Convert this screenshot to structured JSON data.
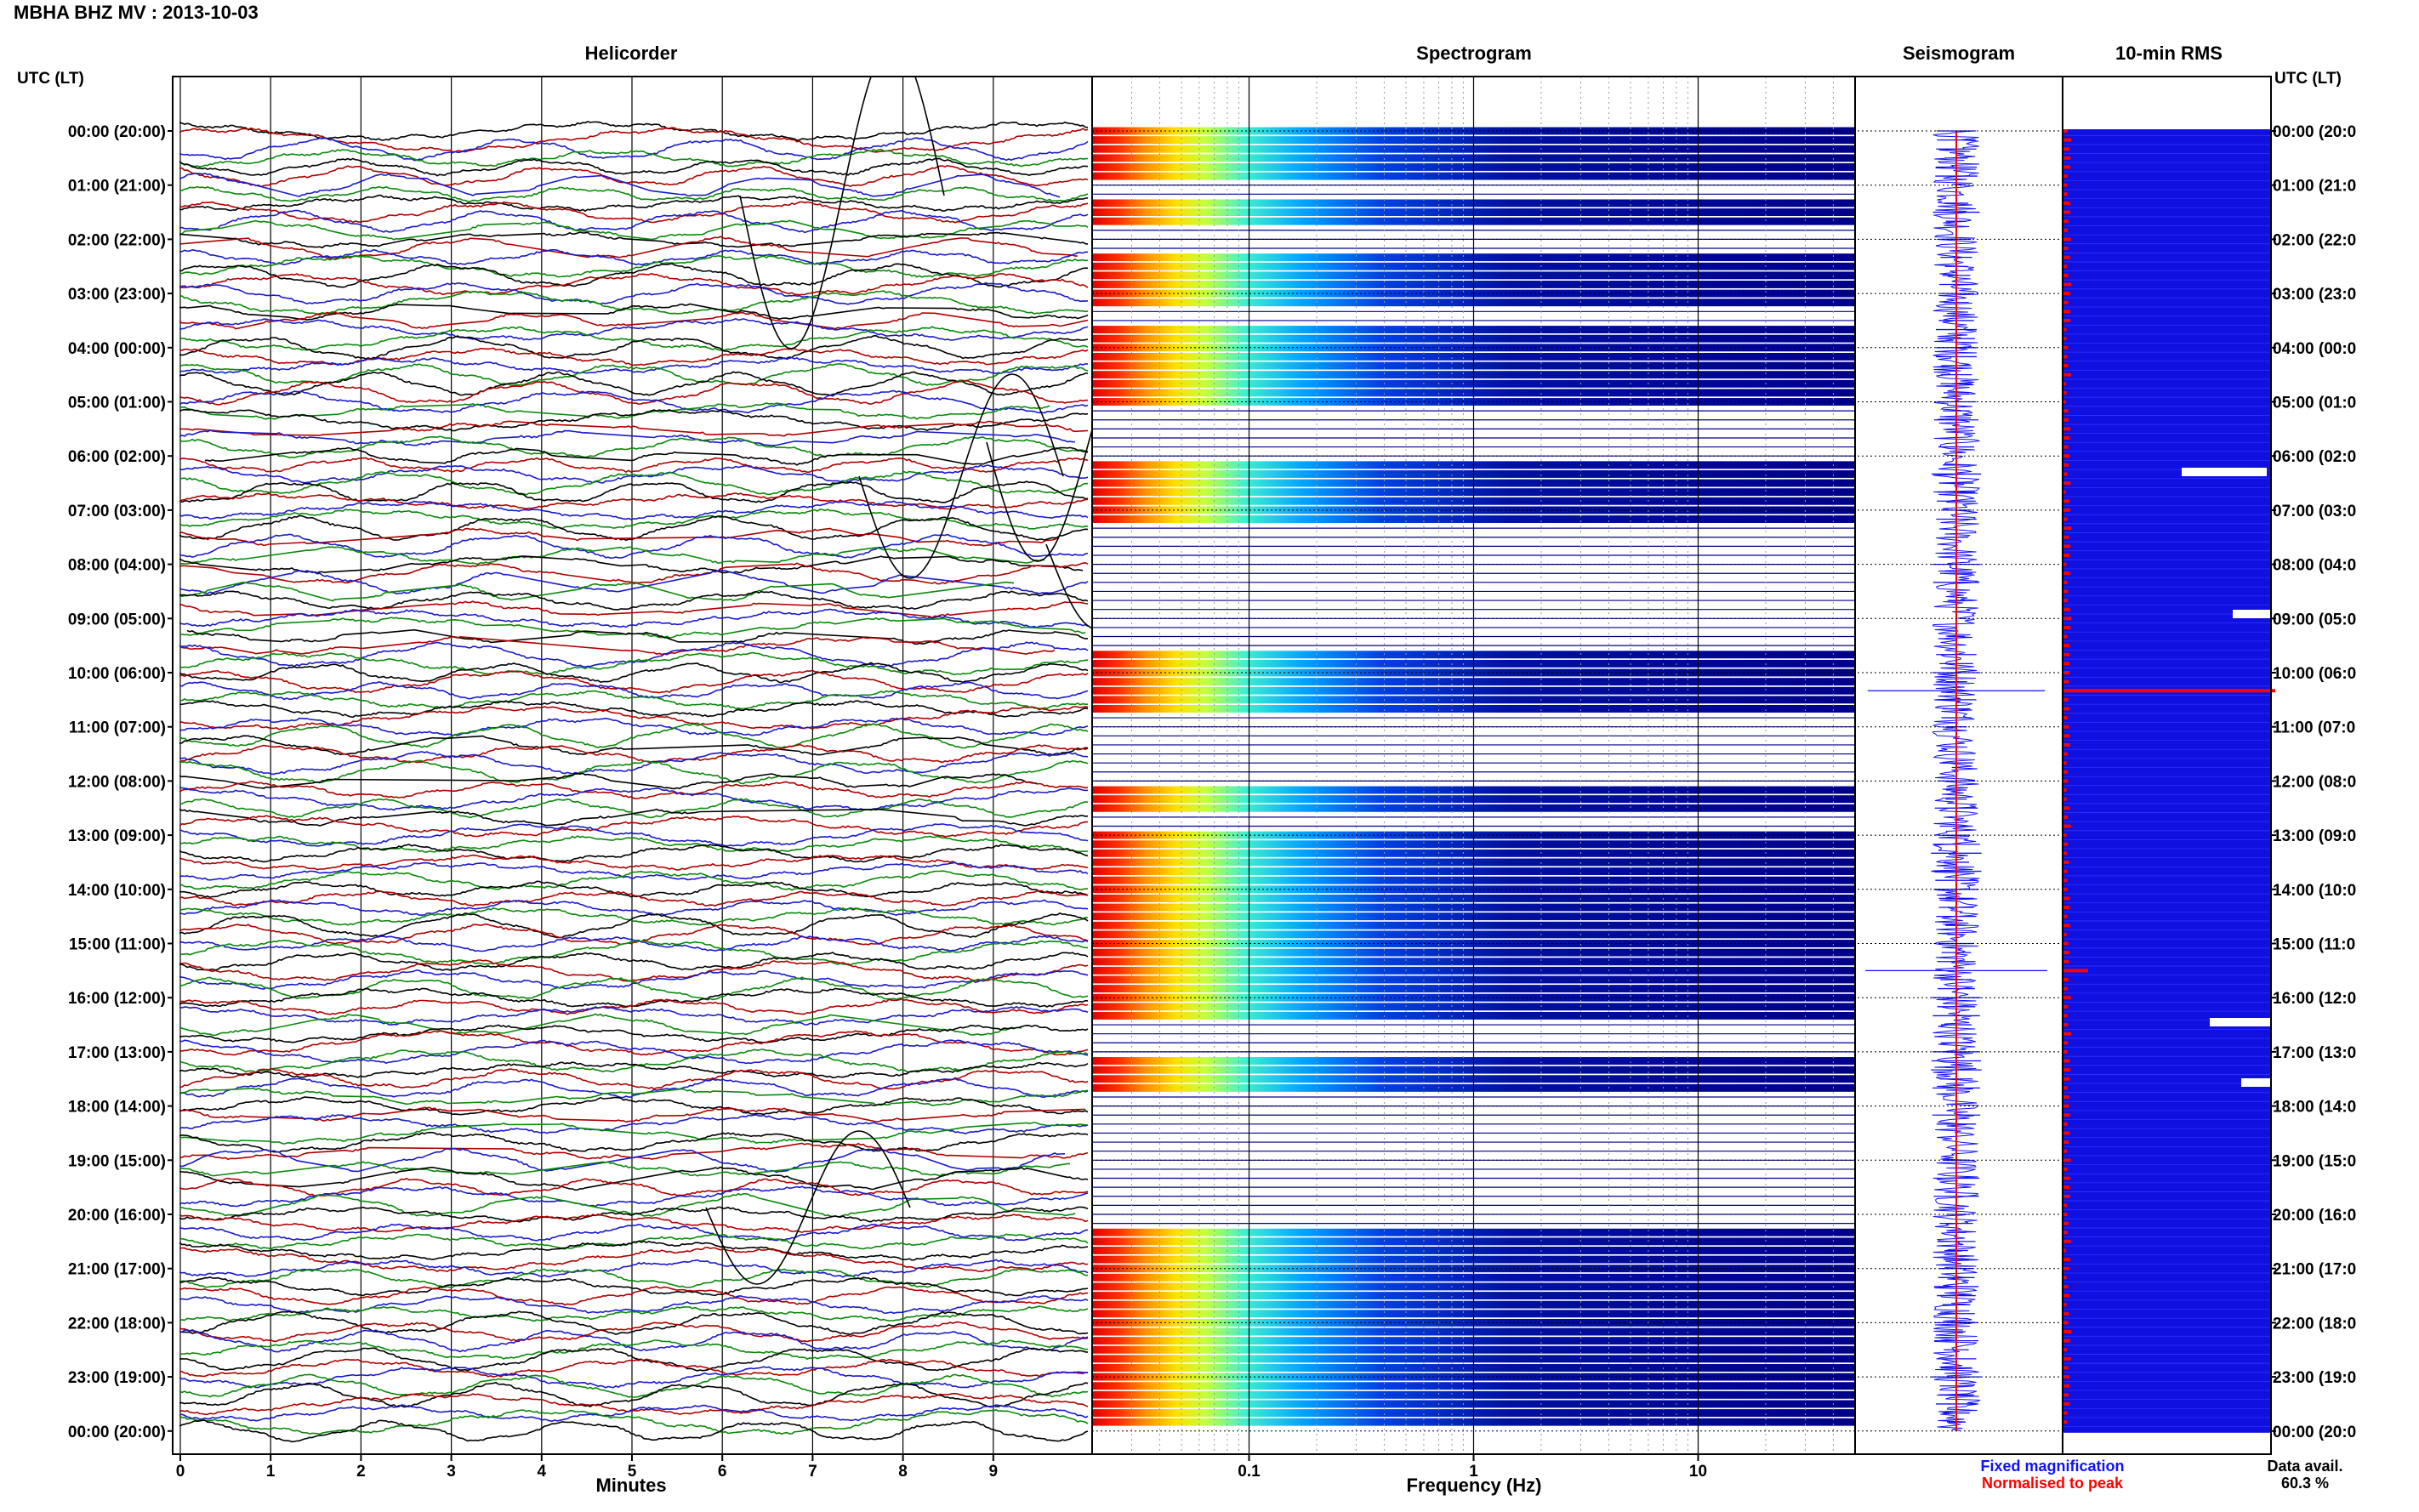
{
  "header": {
    "title": "MBHA BHZ MV : 2013-10-03",
    "utc_label_left": "UTC (LT)",
    "utc_label_right": "UTC (LT)"
  },
  "panels": {
    "helicorder": "Helicorder",
    "spectrogram": "Spectrogram",
    "seismogram": "Seismogram",
    "rms": "10-min RMS"
  },
  "footer": {
    "minutes_label": "Minutes",
    "frequency_label": "Frequency (Hz)",
    "fixed_magnification": "Fixed magnification",
    "normalised_to_peak": "Normalised to peak",
    "data_avail_label": "Data avail.",
    "data_avail_value": "60.3 %"
  },
  "colors": {
    "trace_black": "#000000",
    "trace_red": "#b00000",
    "trace_blue": "#1a1acc",
    "trace_green": "#0a8a0a",
    "rms_blue": "#1010e0",
    "peak_red": "#ff0000",
    "legend_blue": "#1010ff",
    "legend_red": "#ff0000"
  },
  "chart_data": [
    {
      "type": "line",
      "name": "Helicorder",
      "xlabel": "Minutes",
      "x_ticks": [
        "0",
        "1",
        "2",
        "3",
        "4",
        "5",
        "6",
        "7",
        "8",
        "9"
      ],
      "xlim": [
        0,
        10
      ],
      "y_ticks": [
        "00:00 (20:00)",
        "01:00 (21:00)",
        "02:00 (22:00)",
        "03:00 (23:00)",
        "04:00 (00:00)",
        "05:00 (01:00)",
        "06:00 (02:00)",
        "07:00 (03:00)",
        "08:00 (04:00)",
        "09:00 (05:00)",
        "10:00 (06:00)",
        "11:00 (07:00)",
        "12:00 (08:00)",
        "13:00 (09:00)",
        "14:00 (10:00)",
        "15:00 (11:00)",
        "16:00 (12:00)",
        "17:00 (13:00)",
        "18:00 (14:00)",
        "19:00 (15:00)",
        "20:00 (16:00)",
        "21:00 (17:00)",
        "22:00 (18:00)",
        "23:00 (19:00)",
        "00:00 (20:00)"
      ],
      "rows_per_hour": 6,
      "trace_color_cycle": [
        "black",
        "red",
        "blue",
        "green"
      ]
    },
    {
      "type": "heatmap",
      "name": "Spectrogram",
      "xlabel": "Frequency (Hz)",
      "xscale": "log",
      "x_ticks": [
        "0.1",
        "1",
        "10"
      ],
      "x_tick_values": [
        0.1,
        1,
        10
      ],
      "xlim": [
        0.02,
        50
      ],
      "active_rows": [
        0,
        1,
        2,
        3,
        4,
        5,
        8,
        9,
        10,
        14,
        15,
        16,
        17,
        18,
        19,
        22,
        23,
        24,
        25,
        26,
        27,
        28,
        29,
        30,
        37,
        38,
        39,
        40,
        41,
        42,
        43,
        58,
        59,
        60,
        61,
        62,
        63,
        64,
        73,
        74,
        75,
        78,
        79,
        80,
        81,
        82,
        83,
        84,
        85,
        86,
        87,
        88,
        89,
        90,
        91,
        92,
        93,
        94,
        95,
        96,
        97,
        98,
        103,
        104,
        105,
        106,
        122,
        123,
        124,
        125,
        126,
        127,
        128,
        129,
        130,
        131,
        132,
        133,
        134,
        135,
        136,
        137,
        138,
        139,
        140,
        141,
        142,
        143
      ]
    },
    {
      "type": "line",
      "name": "Seismogram",
      "series": [
        {
          "name": "Fixed magnification",
          "color": "blue"
        },
        {
          "name": "Normalised to peak",
          "color": "red"
        }
      ]
    },
    {
      "type": "bar",
      "name": "10-min RMS",
      "orientation": "horizontal",
      "data_availability_percent": 60.3,
      "peak_rows": [
        62,
        93
      ]
    }
  ]
}
